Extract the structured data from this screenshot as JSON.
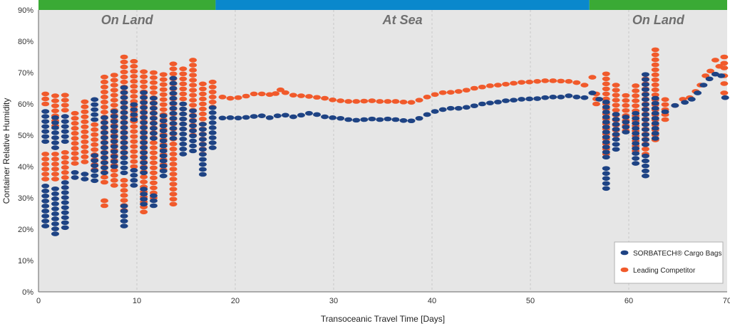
{
  "chart_data": {
    "type": "scatter",
    "xlabel": "Transoceanic Travel Time [Days]",
    "ylabel": "Container Relative Humidity",
    "xlim": [
      0,
      70
    ],
    "ylim": [
      0,
      90
    ],
    "x_ticks": [
      "0",
      "10",
      "20",
      "30",
      "40",
      "50",
      "60",
      "70"
    ],
    "y_ticks": [
      "0%",
      "10%",
      "20%",
      "30%",
      "40%",
      "50%",
      "60%",
      "70%",
      "80%",
      "90%"
    ],
    "grid": "vertical-dashed",
    "legend_position": "bottom-right",
    "colors": {
      "sorbatech": "#1e4384",
      "competitor": "#f15a2b",
      "land_band": "#3aaa35",
      "sea_band": "#0a88cc",
      "plot_bg": "#e6e6e6"
    },
    "phases": [
      {
        "label": "On Land",
        "start": 0,
        "end": 18,
        "color": "#3aaa35"
      },
      {
        "label": "At Sea",
        "start": 18,
        "end": 56,
        "color": "#0a88cc"
      },
      {
        "label": "On Land",
        "start": 56,
        "end": 70,
        "color": "#3aaa35"
      }
    ],
    "series": [
      {
        "name": "SORBATECH® Cargo Bags",
        "color": "#1e4384",
        "columns": [
          {
            "x": 0.7,
            "lo": 21,
            "hi": 35
          },
          {
            "x": 0.7,
            "lo": 48,
            "hi": 58
          },
          {
            "x": 1.7,
            "lo": 18.5,
            "hi": 34
          },
          {
            "x": 1.7,
            "lo": 46,
            "hi": 57
          },
          {
            "x": 2.7,
            "lo": 20.5,
            "hi": 35
          },
          {
            "x": 2.7,
            "lo": 48,
            "hi": 57
          },
          {
            "x": 3.7,
            "lo": 36.5,
            "hi": 39
          },
          {
            "x": 4.7,
            "lo": 36,
            "hi": 39
          },
          {
            "x": 5.7,
            "lo": 35.5,
            "hi": 45
          },
          {
            "x": 5.7,
            "lo": 55,
            "hi": 61.5
          },
          {
            "x": 6.7,
            "lo": 38,
            "hi": 56
          },
          {
            "x": 7.7,
            "lo": 40,
            "hi": 58
          },
          {
            "x": 8.7,
            "lo": 21,
            "hi": 28
          },
          {
            "x": 8.7,
            "lo": 38,
            "hi": 66
          },
          {
            "x": 9.7,
            "lo": 34,
            "hi": 39
          },
          {
            "x": 9.7,
            "lo": 55,
            "hi": 61
          },
          {
            "x": 10.7,
            "lo": 28,
            "hi": 33
          },
          {
            "x": 10.7,
            "lo": 38,
            "hi": 65
          },
          {
            "x": 11.7,
            "lo": 27.5,
            "hi": 31
          },
          {
            "x": 11.7,
            "lo": 49,
            "hi": 63
          },
          {
            "x": 12.7,
            "lo": 37,
            "hi": 57
          },
          {
            "x": 13.7,
            "lo": 49,
            "hi": 69
          },
          {
            "x": 14.7,
            "lo": 44,
            "hi": 60
          },
          {
            "x": 15.7,
            "lo": 45,
            "hi": 59
          },
          {
            "x": 16.7,
            "lo": 37.5,
            "hi": 55
          },
          {
            "x": 17.7,
            "lo": 46,
            "hi": 59.5
          },
          {
            "x": 57.7,
            "lo": 33,
            "hi": 40
          },
          {
            "x": 57.7,
            "lo": 43,
            "hi": 62
          },
          {
            "x": 58.7,
            "lo": 45.5,
            "hi": 57
          },
          {
            "x": 59.7,
            "lo": 51,
            "hi": 57
          },
          {
            "x": 60.7,
            "lo": 41,
            "hi": 57
          },
          {
            "x": 61.7,
            "lo": 37,
            "hi": 44
          },
          {
            "x": 61.7,
            "lo": 47,
            "hi": 70
          },
          {
            "x": 62.7,
            "lo": 49,
            "hi": 62
          },
          {
            "x": 63.7,
            "lo": 57.5,
            "hi": 57.5
          }
        ],
        "points": [
          {
            "x": 18.7,
            "y": 55.5
          },
          {
            "x": 19.5,
            "y": 55.6
          },
          {
            "x": 20.3,
            "y": 55.5
          },
          {
            "x": 21.1,
            "y": 55.7
          },
          {
            "x": 21.9,
            "y": 56
          },
          {
            "x": 22.7,
            "y": 56.2
          },
          {
            "x": 23.5,
            "y": 55.6
          },
          {
            "x": 24.3,
            "y": 56.2
          },
          {
            "x": 25.1,
            "y": 56.4
          },
          {
            "x": 25.9,
            "y": 55.9
          },
          {
            "x": 26.7,
            "y": 56.4
          },
          {
            "x": 27.5,
            "y": 57
          },
          {
            "x": 28.3,
            "y": 56.6
          },
          {
            "x": 29.1,
            "y": 55.9
          },
          {
            "x": 29.9,
            "y": 55.6
          },
          {
            "x": 30.7,
            "y": 55.4
          },
          {
            "x": 31.5,
            "y": 55
          },
          {
            "x": 32.3,
            "y": 54.8
          },
          {
            "x": 33.1,
            "y": 55
          },
          {
            "x": 33.9,
            "y": 55.2
          },
          {
            "x": 34.7,
            "y": 55
          },
          {
            "x": 35.5,
            "y": 55.2
          },
          {
            "x": 36.3,
            "y": 55
          },
          {
            "x": 37.1,
            "y": 54.7
          },
          {
            "x": 37.9,
            "y": 54.6
          },
          {
            "x": 38.7,
            "y": 55.4
          },
          {
            "x": 39.5,
            "y": 56.6
          },
          {
            "x": 40.3,
            "y": 57.6
          },
          {
            "x": 41.1,
            "y": 58.2
          },
          {
            "x": 41.9,
            "y": 58.6
          },
          {
            "x": 42.7,
            "y": 58.6
          },
          {
            "x": 43.5,
            "y": 58.9
          },
          {
            "x": 44.3,
            "y": 59.4
          },
          {
            "x": 45.1,
            "y": 60
          },
          {
            "x": 45.9,
            "y": 60.3
          },
          {
            "x": 46.7,
            "y": 60.6
          },
          {
            "x": 47.5,
            "y": 61
          },
          {
            "x": 48.3,
            "y": 61.2
          },
          {
            "x": 49.1,
            "y": 61.5
          },
          {
            "x": 49.9,
            "y": 61.6
          },
          {
            "x": 50.7,
            "y": 61.7
          },
          {
            "x": 51.5,
            "y": 62
          },
          {
            "x": 52.3,
            "y": 62.2
          },
          {
            "x": 53.1,
            "y": 62.2
          },
          {
            "x": 53.9,
            "y": 62.6
          },
          {
            "x": 54.7,
            "y": 62.2
          },
          {
            "x": 55.5,
            "y": 62
          },
          {
            "x": 56.3,
            "y": 63.5
          },
          {
            "x": 57,
            "y": 61.5
          },
          {
            "x": 64.7,
            "y": 59.5
          },
          {
            "x": 65.7,
            "y": 60.5
          },
          {
            "x": 66.4,
            "y": 61.5
          },
          {
            "x": 67,
            "y": 63.5
          },
          {
            "x": 67.6,
            "y": 66
          },
          {
            "x": 68.2,
            "y": 68
          },
          {
            "x": 68.8,
            "y": 69.5
          },
          {
            "x": 69.4,
            "y": 69
          },
          {
            "x": 69.8,
            "y": 62
          }
        ]
      },
      {
        "name": "Leading Competitor",
        "color": "#f15a2b",
        "columns": [
          {
            "x": 0.7,
            "lo": 36,
            "hi": 45
          },
          {
            "x": 0.7,
            "lo": 60,
            "hi": 64
          },
          {
            "x": 1.7,
            "lo": 36,
            "hi": 45
          },
          {
            "x": 1.7,
            "lo": 53,
            "hi": 63
          },
          {
            "x": 2.7,
            "lo": 36.5,
            "hi": 45.5
          },
          {
            "x": 2.7,
            "lo": 58,
            "hi": 63.5
          },
          {
            "x": 3.7,
            "lo": 41,
            "hi": 57.5
          },
          {
            "x": 4.7,
            "lo": 41.5,
            "hi": 62
          },
          {
            "x": 5.7,
            "lo": 39,
            "hi": 54
          },
          {
            "x": 6.7,
            "lo": 27.5,
            "hi": 30
          },
          {
            "x": 6.7,
            "lo": 35,
            "hi": 70
          },
          {
            "x": 7.7,
            "lo": 34,
            "hi": 70.5
          },
          {
            "x": 8.7,
            "lo": 26,
            "hi": 36
          },
          {
            "x": 8.7,
            "lo": 43,
            "hi": 75
          },
          {
            "x": 9.7,
            "lo": 40,
            "hi": 75
          },
          {
            "x": 10.7,
            "lo": 25.5,
            "hi": 71.5
          },
          {
            "x": 11.7,
            "lo": 30,
            "hi": 71
          },
          {
            "x": 12.7,
            "lo": 39,
            "hi": 69.5
          },
          {
            "x": 13.7,
            "lo": 28,
            "hi": 73.5
          },
          {
            "x": 14.7,
            "lo": 52,
            "hi": 72
          },
          {
            "x": 15.7,
            "lo": 50,
            "hi": 74.5
          },
          {
            "x": 16.7,
            "lo": 44,
            "hi": 66.5
          },
          {
            "x": 17.7,
            "lo": 59,
            "hi": 67.5
          },
          {
            "x": 56.7,
            "lo": 60,
            "hi": 64
          },
          {
            "x": 57.7,
            "lo": 44,
            "hi": 71
          },
          {
            "x": 58.7,
            "lo": 50,
            "hi": 67
          },
          {
            "x": 59.7,
            "lo": 51.5,
            "hi": 63.5
          },
          {
            "x": 60.7,
            "lo": 45,
            "hi": 66.5
          },
          {
            "x": 61.7,
            "lo": 44,
            "hi": 69.5
          },
          {
            "x": 62.7,
            "lo": 48.5,
            "hi": 78
          },
          {
            "x": 63.7,
            "lo": 55,
            "hi": 62.5
          },
          {
            "x": 64.7,
            "lo": 59.5,
            "hi": 61
          }
        ],
        "points": [
          {
            "x": 18.7,
            "y": 62.2
          },
          {
            "x": 19.5,
            "y": 61.8
          },
          {
            "x": 20.3,
            "y": 62
          },
          {
            "x": 21.1,
            "y": 62.5
          },
          {
            "x": 21.9,
            "y": 63.2
          },
          {
            "x": 22.7,
            "y": 63.2
          },
          {
            "x": 23.5,
            "y": 63
          },
          {
            "x": 24.1,
            "y": 63.3
          },
          {
            "x": 24.6,
            "y": 64.5
          },
          {
            "x": 25.1,
            "y": 63.6
          },
          {
            "x": 25.9,
            "y": 62.8
          },
          {
            "x": 26.7,
            "y": 62.6
          },
          {
            "x": 27.5,
            "y": 62.4
          },
          {
            "x": 28.3,
            "y": 62.1
          },
          {
            "x": 29.1,
            "y": 61.8
          },
          {
            "x": 29.9,
            "y": 61.3
          },
          {
            "x": 30.7,
            "y": 61
          },
          {
            "x": 31.5,
            "y": 60.8
          },
          {
            "x": 32.3,
            "y": 60.8
          },
          {
            "x": 33.1,
            "y": 60.9
          },
          {
            "x": 33.9,
            "y": 61
          },
          {
            "x": 34.7,
            "y": 60.8
          },
          {
            "x": 35.5,
            "y": 60.8
          },
          {
            "x": 36.3,
            "y": 60.8
          },
          {
            "x": 37.1,
            "y": 60.6
          },
          {
            "x": 37.9,
            "y": 60.5
          },
          {
            "x": 38.7,
            "y": 61.2
          },
          {
            "x": 39.5,
            "y": 62.2
          },
          {
            "x": 40.3,
            "y": 63
          },
          {
            "x": 41.1,
            "y": 63.6
          },
          {
            "x": 41.9,
            "y": 63.7
          },
          {
            "x": 42.7,
            "y": 64
          },
          {
            "x": 43.5,
            "y": 64.4
          },
          {
            "x": 44.3,
            "y": 65
          },
          {
            "x": 45.1,
            "y": 65.4
          },
          {
            "x": 45.9,
            "y": 65.8
          },
          {
            "x": 46.7,
            "y": 66
          },
          {
            "x": 47.5,
            "y": 66.3
          },
          {
            "x": 48.3,
            "y": 66.6
          },
          {
            "x": 49.1,
            "y": 66.9
          },
          {
            "x": 49.9,
            "y": 67
          },
          {
            "x": 50.7,
            "y": 67.2
          },
          {
            "x": 51.5,
            "y": 67.4
          },
          {
            "x": 52.3,
            "y": 67.4
          },
          {
            "x": 53.1,
            "y": 67.3
          },
          {
            "x": 53.9,
            "y": 67.2
          },
          {
            "x": 54.7,
            "y": 66.8
          },
          {
            "x": 55.5,
            "y": 66
          },
          {
            "x": 56.3,
            "y": 68.5
          },
          {
            "x": 65.5,
            "y": 61.5
          },
          {
            "x": 66.2,
            "y": 62
          },
          {
            "x": 66.8,
            "y": 64
          },
          {
            "x": 67.3,
            "y": 66
          },
          {
            "x": 67.8,
            "y": 69
          },
          {
            "x": 68.3,
            "y": 70.5
          },
          {
            "x": 68.8,
            "y": 74
          },
          {
            "x": 69.2,
            "y": 72
          },
          {
            "x": 69.7,
            "y": 63.5
          },
          {
            "x": 69.7,
            "y": 66.5
          },
          {
            "x": 69.7,
            "y": 69
          },
          {
            "x": 69.7,
            "y": 71.5
          },
          {
            "x": 69.7,
            "y": 73
          },
          {
            "x": 69.7,
            "y": 75
          }
        ]
      }
    ]
  }
}
